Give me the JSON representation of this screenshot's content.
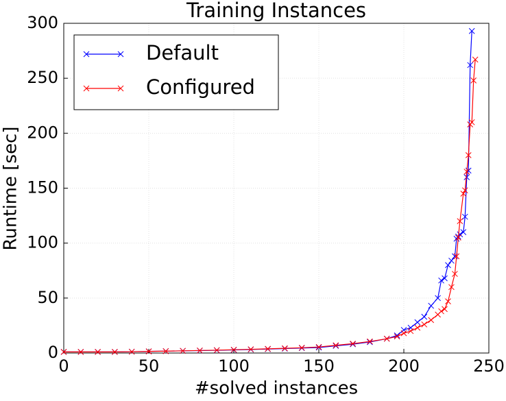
{
  "chart_data": {
    "type": "line",
    "title": "Training Instances",
    "x_label": "#solved instances",
    "y_label": "Runtime [sec]",
    "x": [
      0,
      10,
      20,
      30,
      40,
      50,
      60,
      70,
      80,
      90,
      100,
      110,
      120,
      130,
      140,
      150,
      160,
      170,
      180,
      190,
      196,
      200,
      204,
      208,
      212,
      216,
      220,
      222,
      224,
      226,
      228,
      230,
      231,
      232,
      233,
      235,
      236,
      237,
      238,
      239,
      240,
      241,
      242
    ],
    "series": [
      {
        "name": "Default",
        "color": "#0000ff",
        "values": [
          1,
          1,
          1,
          1,
          1.2,
          1.5,
          1.7,
          2,
          2.2,
          2.5,
          2.8,
          3.2,
          3.6,
          4,
          4.5,
          5,
          6.5,
          8,
          10,
          13,
          16,
          21,
          23,
          28,
          33,
          43,
          50,
          66,
          68,
          80,
          84,
          88,
          104,
          106,
          108,
          110,
          124,
          160,
          166,
          262,
          293,
          null,
          null
        ]
      },
      {
        "name": "Configured",
        "color": "#ff0000",
        "values": [
          1,
          1,
          1,
          1,
          1.2,
          1.5,
          1.7,
          2,
          2.3,
          2.6,
          3,
          3.4,
          3.8,
          4.3,
          4.8,
          5.5,
          7,
          8.5,
          10.5,
          13,
          15,
          18,
          20,
          23,
          26,
          30,
          35,
          38,
          40,
          47,
          60,
          72,
          88,
          105,
          120,
          145,
          148,
          165,
          180,
          208,
          210,
          248,
          267
        ]
      }
    ],
    "xlim": [
      0,
      250
    ],
    "xticks": [
      0,
      50,
      100,
      150,
      200,
      250
    ],
    "ylim": [
      0,
      300
    ],
    "yticks": [
      0,
      50,
      100,
      150,
      200,
      250,
      300
    ],
    "grid": true,
    "legend": "upper left"
  }
}
